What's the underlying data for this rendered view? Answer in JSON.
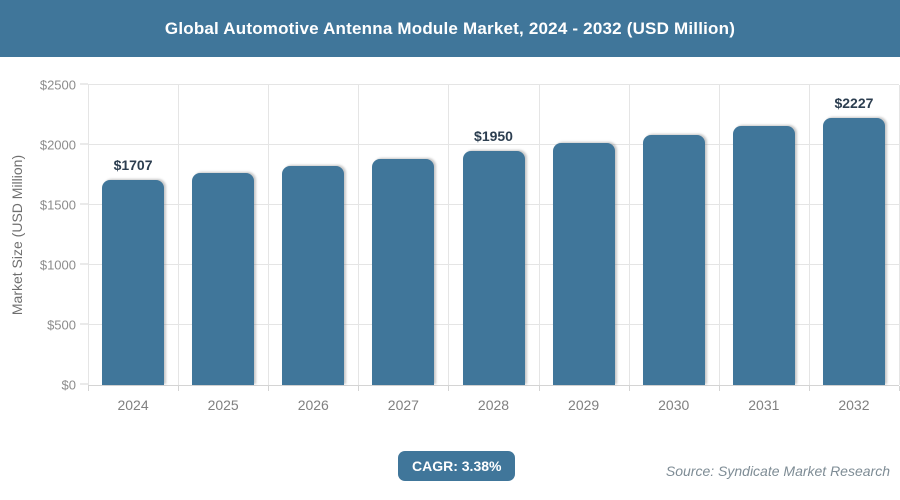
{
  "header": {
    "title": "Global Automotive Antenna Module Market, 2024 - 2032 (USD Million)"
  },
  "colors": {
    "accent": "#40769A",
    "bar_fill": "#40769A",
    "data_label_text": "#2C3E50",
    "gridline": "#E5E5E5",
    "tick_text": "#8C8C8C",
    "header_text": "#FFFFFF"
  },
  "chart_data": {
    "type": "bar",
    "title": "Global Automotive Antenna Module Market, 2024 - 2032 (USD Million)",
    "categories": [
      "2024",
      "2025",
      "2026",
      "2027",
      "2028",
      "2029",
      "2030",
      "2031",
      "2032"
    ],
    "values": [
      1707,
      1765,
      1824,
      1886,
      1950,
      2016,
      2084,
      2155,
      2227
    ],
    "data_labels": [
      "$1707",
      "",
      "",
      "",
      "$1950",
      "",
      "",
      "",
      "$2227"
    ],
    "xlabel": "",
    "ylabel": "Market Size (USD Million)",
    "ylim": [
      0,
      2500
    ],
    "ytick_step": 500,
    "yticks": [
      "$0",
      "$500",
      "$1000",
      "$1500",
      "$2000",
      "$2500"
    ],
    "grid": true,
    "legend_position": "none"
  },
  "footer": {
    "cagr_label": "CAGR: 3.38%",
    "source": "Source: Syndicate Market Research"
  }
}
